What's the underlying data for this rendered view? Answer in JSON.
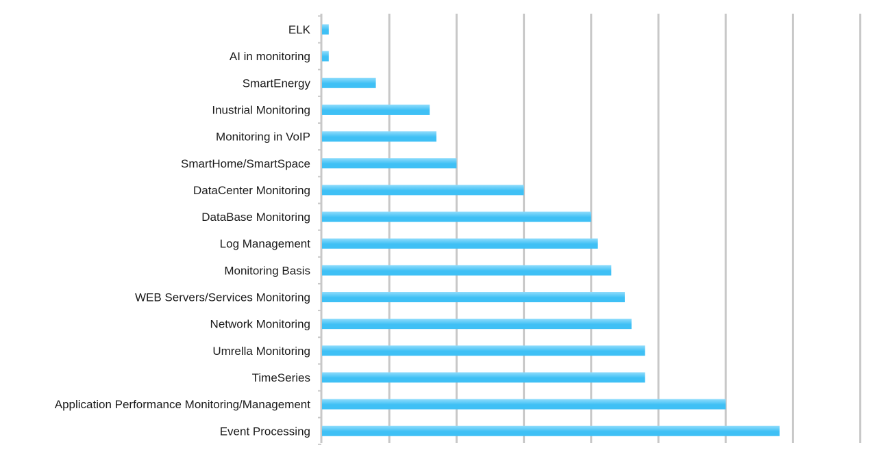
{
  "chart_data": {
    "type": "bar",
    "orientation": "horizontal",
    "title": "",
    "xlabel": "",
    "ylabel": "",
    "categories": [
      "ELK",
      "AI in monitoring",
      "SmartEnergy",
      "Inustrial Monitoring",
      "Monitoring in VoIP",
      "SmartHome/SmartSpace",
      "DataCenter Monitoring",
      "DataBase Monitoring",
      "Log Management",
      "Monitoring Basis",
      "WEB Servers/Services Monitoring",
      "Network Monitoring",
      "Umrella Monitoring",
      "TimeSeries",
      "Application Performance Monitoring/Management",
      "Event Processing"
    ],
    "values": [
      0.1,
      0.1,
      0.8,
      1.6,
      1.7,
      2,
      3,
      4,
      4.1,
      4.3,
      4.5,
      4.6,
      4.8,
      4.8,
      6,
      6.8
    ],
    "xlim": [
      0,
      8
    ],
    "grid": true,
    "tick_labels_visible": false,
    "bar_color": "#3fc0f5",
    "bar_color_light": "#8fdcfc",
    "grid_color": "#c8c8c8"
  }
}
